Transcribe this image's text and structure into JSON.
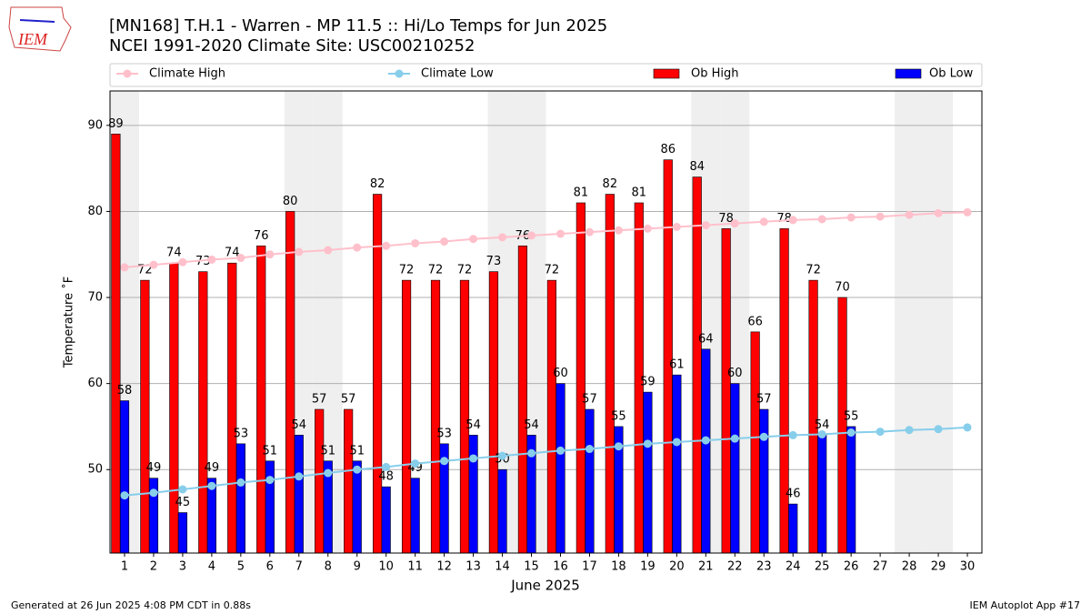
{
  "chart_data": {
    "type": "bar",
    "title": "[MN168] T.H.1 - Warren - MP 11.5  :: Hi/Lo Temps for Jun 2025",
    "subtitle": "NCEI 1991-2020 Climate Site: USC00210252",
    "logo": "IEM",
    "xlabel": "June 2025",
    "ylabel": "Temperature ˚F",
    "footer_left": "Generated at 26 Jun 2025 4:08 PM CDT in 0.88s",
    "footer_right": "IEM Autoplot App #17",
    "x": [
      1,
      2,
      3,
      4,
      5,
      6,
      7,
      8,
      9,
      10,
      11,
      12,
      13,
      14,
      15,
      16,
      17,
      18,
      19,
      20,
      21,
      22,
      23,
      24,
      25,
      26,
      27,
      28,
      29,
      30
    ],
    "xlim": [
      0.5,
      30.5
    ],
    "xticks": [
      1,
      2,
      3,
      4,
      5,
      6,
      7,
      8,
      9,
      10,
      11,
      12,
      13,
      14,
      15,
      16,
      17,
      18,
      19,
      20,
      21,
      22,
      23,
      24,
      25,
      26,
      27,
      28,
      29,
      30
    ],
    "ylim": [
      40.3,
      94.0
    ],
    "yticks": [
      50,
      60,
      70,
      80,
      90
    ],
    "grid": true,
    "shaded_days": [
      1,
      7,
      8,
      14,
      15,
      21,
      22,
      28,
      29
    ],
    "shade_color": "#efefef",
    "series": [
      {
        "name": "Climate High",
        "type": "line",
        "color": "#ffc0cb",
        "values": [
          73.5,
          73.8,
          74.1,
          74.4,
          74.6,
          75.0,
          75.3,
          75.5,
          75.8,
          76.0,
          76.3,
          76.5,
          76.8,
          77.0,
          77.2,
          77.4,
          77.6,
          77.8,
          78.0,
          78.2,
          78.4,
          78.6,
          78.8,
          79.0,
          79.1,
          79.3,
          79.4,
          79.6,
          79.8,
          79.9
        ]
      },
      {
        "name": "Climate Low",
        "type": "line",
        "color": "#87ceeb",
        "values": [
          47.0,
          47.3,
          47.7,
          48.1,
          48.5,
          48.8,
          49.2,
          49.6,
          50.0,
          50.3,
          50.7,
          51.0,
          51.3,
          51.6,
          51.9,
          52.2,
          52.4,
          52.7,
          53.0,
          53.2,
          53.4,
          53.6,
          53.8,
          54.0,
          54.1,
          54.3,
          54.4,
          54.6,
          54.7,
          54.9
        ]
      },
      {
        "name": "Ob High",
        "type": "bar",
        "color": "#ff0000",
        "values": [
          89,
          72,
          74,
          73,
          74,
          76,
          80,
          57,
          57,
          82,
          72,
          72,
          72,
          73,
          76,
          72,
          81,
          82,
          81,
          86,
          84,
          78,
          66,
          78,
          72,
          70,
          null,
          null,
          null,
          null
        ]
      },
      {
        "name": "Ob Low",
        "type": "bar",
        "color": "#0000ff",
        "values": [
          58,
          49,
          45,
          49,
          53,
          51,
          54,
          51,
          51,
          48,
          49,
          53,
          54,
          50,
          54,
          60,
          57,
          55,
          59,
          61,
          64,
          60,
          57,
          46,
          54,
          55,
          null,
          null,
          null,
          null
        ]
      }
    ]
  }
}
